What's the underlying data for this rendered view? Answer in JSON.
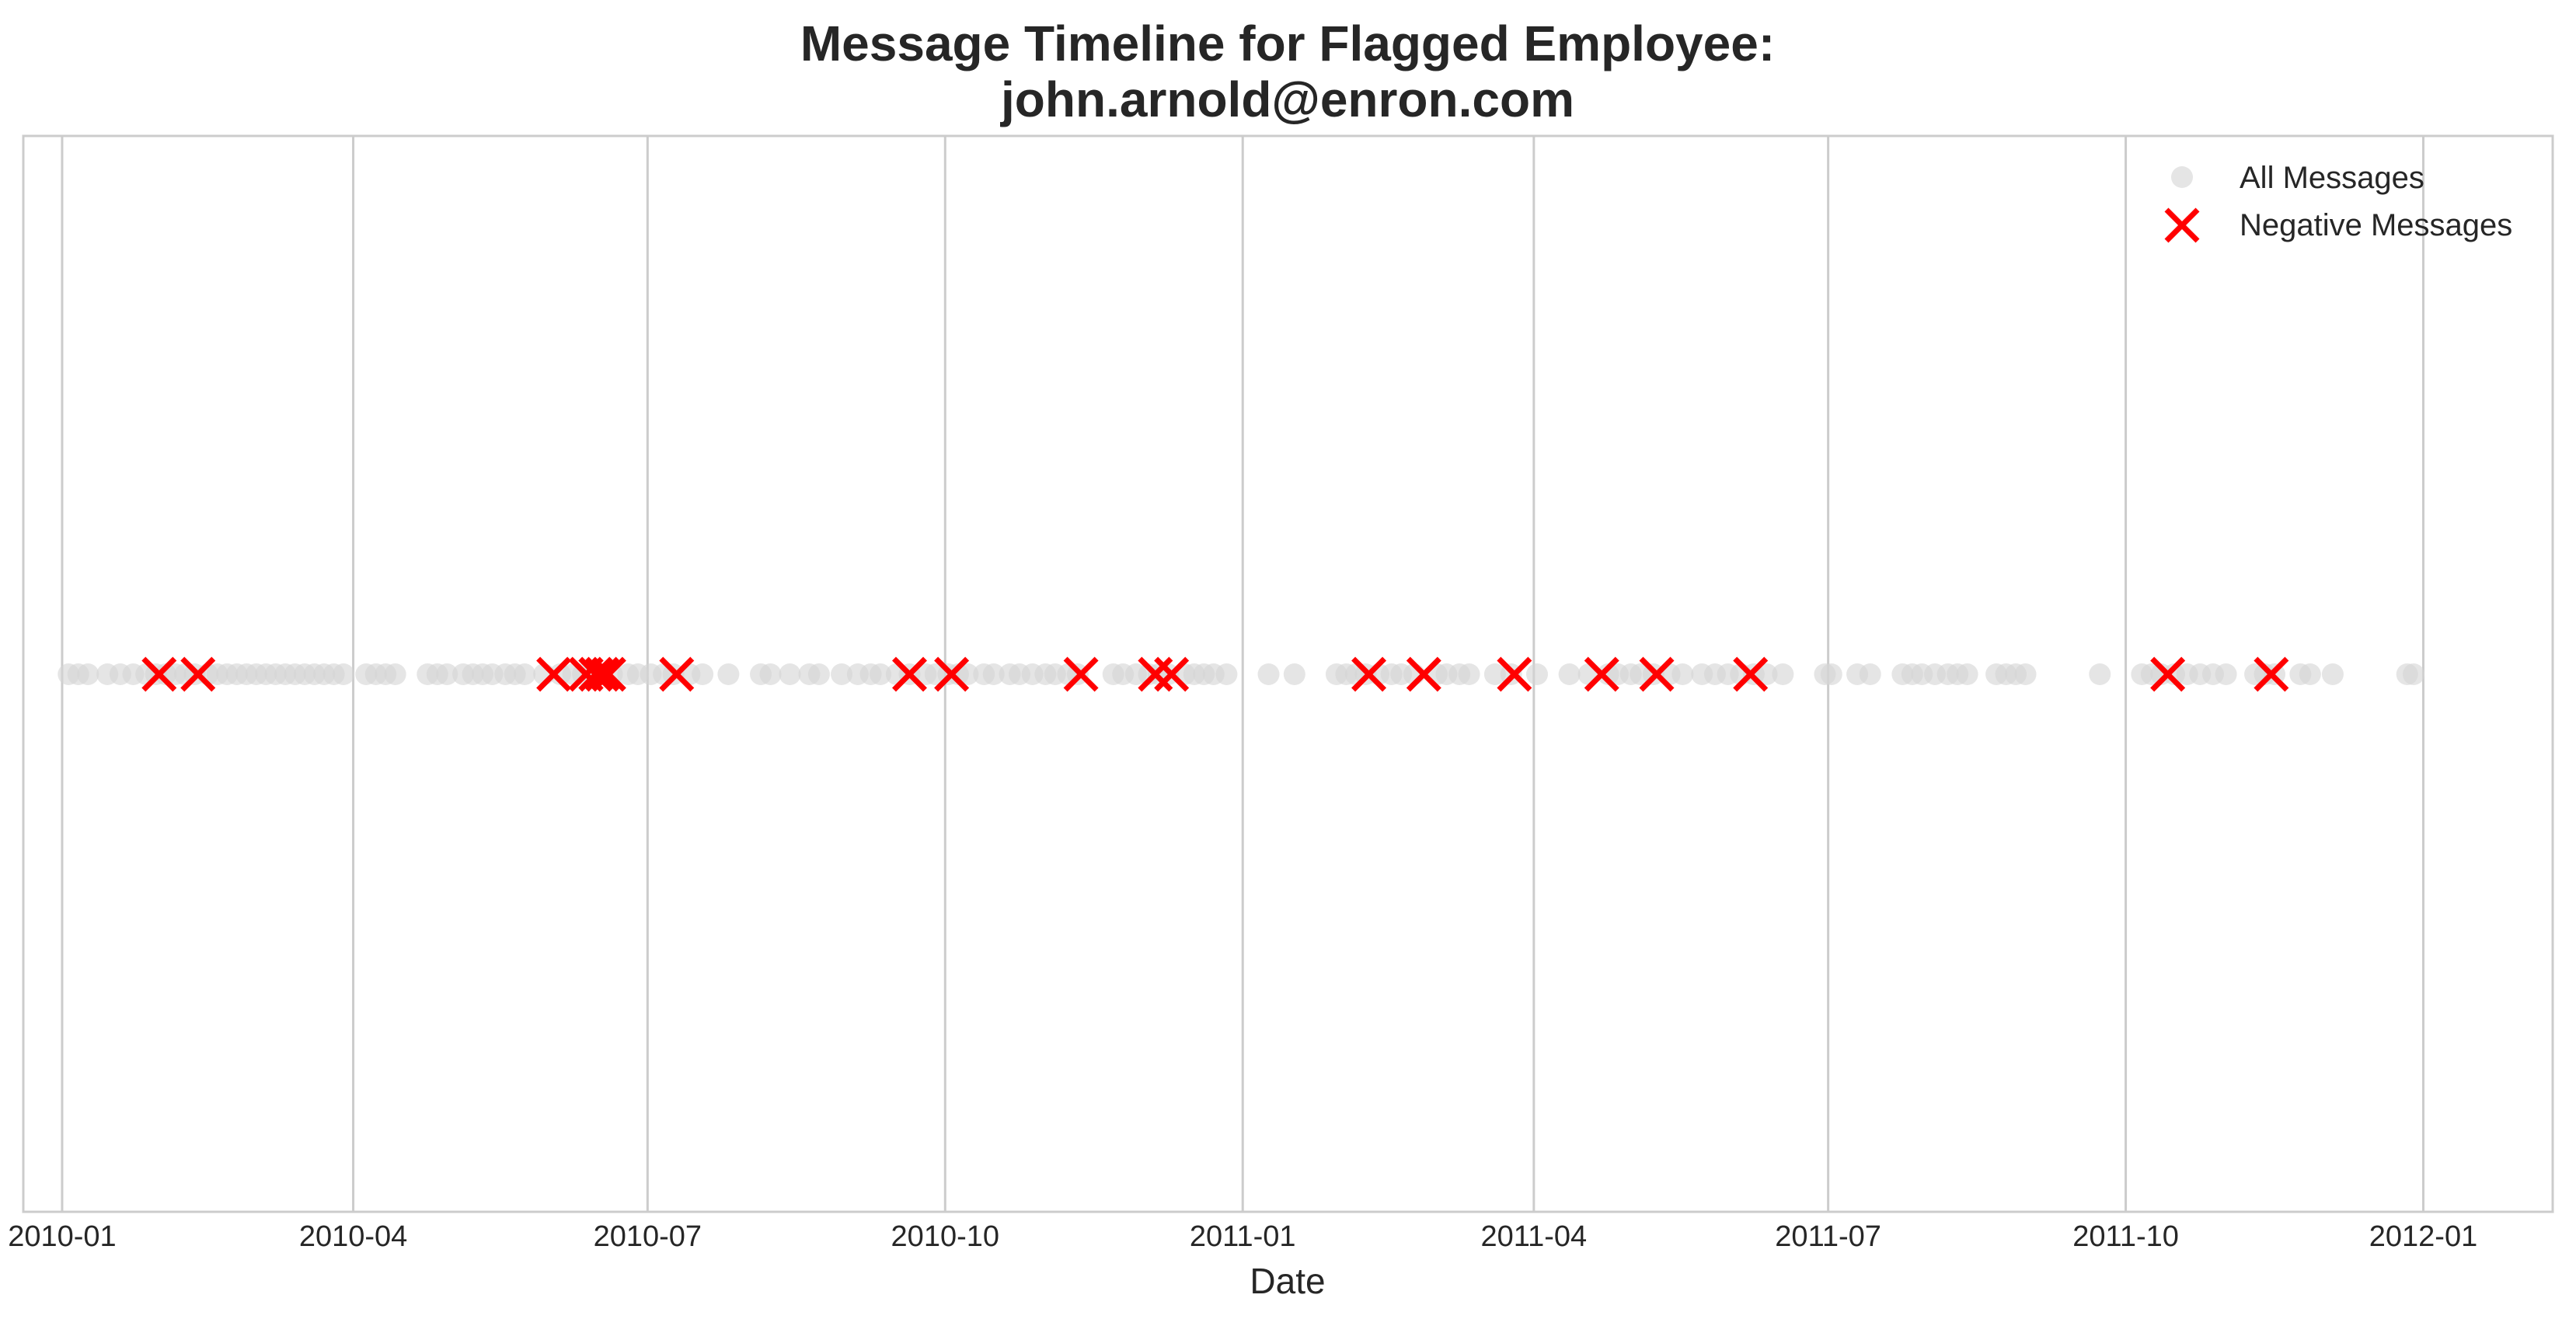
{
  "chart_data": {
    "type": "scatter",
    "title_line1": "Message Timeline for Flagged Employee:",
    "title_line2": "john.arnold@enron.com",
    "xlabel": "Date",
    "ylabel": "",
    "xlim": [
      "2009-12-20",
      "2012-02-10"
    ],
    "grid": true,
    "grid_axis": "x",
    "x_ticks": [
      "2010-01",
      "2010-04",
      "2010-07",
      "2010-10",
      "2011-01",
      "2011-04",
      "2011-07",
      "2011-10",
      "2012-01"
    ],
    "legend_position": "top-right",
    "series": [
      {
        "name": "All Messages",
        "marker": "circle",
        "color": "#d3d3d3",
        "x": [
          "2010-01-03",
          "2010-01-06",
          "2010-01-09",
          "2010-01-15",
          "2010-01-19",
          "2010-01-23",
          "2010-01-27",
          "2010-01-30",
          "2010-02-02",
          "2010-02-05",
          "2010-02-08",
          "2010-02-11",
          "2010-02-15",
          "2010-02-18",
          "2010-02-21",
          "2010-02-24",
          "2010-02-27",
          "2010-03-02",
          "2010-03-05",
          "2010-03-08",
          "2010-03-11",
          "2010-03-14",
          "2010-03-17",
          "2010-03-20",
          "2010-03-23",
          "2010-03-26",
          "2010-03-29",
          "2010-04-05",
          "2010-04-08",
          "2010-04-11",
          "2010-04-14",
          "2010-04-24",
          "2010-04-27",
          "2010-04-30",
          "2010-05-05",
          "2010-05-08",
          "2010-05-11",
          "2010-05-14",
          "2010-05-18",
          "2010-05-21",
          "2010-05-24",
          "2010-05-30",
          "2010-06-04",
          "2010-06-08",
          "2010-06-11",
          "2010-06-14",
          "2010-06-17",
          "2010-06-20",
          "2010-06-25",
          "2010-06-28",
          "2010-07-02",
          "2010-07-06",
          "2010-07-09",
          "2010-07-14",
          "2010-07-18",
          "2010-07-26",
          "2010-08-05",
          "2010-08-08",
          "2010-08-14",
          "2010-08-20",
          "2010-08-23",
          "2010-08-30",
          "2010-09-04",
          "2010-09-08",
          "2010-09-11",
          "2010-09-16",
          "2010-09-20",
          "2010-09-25",
          "2010-09-28",
          "2010-10-02",
          "2010-10-05",
          "2010-10-08",
          "2010-10-13",
          "2010-10-16",
          "2010-10-21",
          "2010-10-24",
          "2010-10-28",
          "2010-11-01",
          "2010-11-04",
          "2010-11-08",
          "2010-11-11",
          "2010-11-22",
          "2010-11-25",
          "2010-11-29",
          "2010-12-03",
          "2010-12-06",
          "2010-12-09",
          "2010-12-14",
          "2010-12-17",
          "2010-12-20",
          "2010-12-23",
          "2010-12-27",
          "2011-01-09",
          "2011-01-17",
          "2011-01-30",
          "2011-02-02",
          "2011-02-05",
          "2011-02-08",
          "2011-02-12",
          "2011-02-16",
          "2011-02-19",
          "2011-02-23",
          "2011-03-02",
          "2011-03-05",
          "2011-03-09",
          "2011-03-12",
          "2011-03-20",
          "2011-03-25",
          "2011-04-02",
          "2011-04-12",
          "2011-04-18",
          "2011-04-24",
          "2011-04-27",
          "2011-05-01",
          "2011-05-04",
          "2011-05-08",
          "2011-05-13",
          "2011-05-17",
          "2011-05-23",
          "2011-05-27",
          "2011-05-31",
          "2011-06-04",
          "2011-06-08",
          "2011-06-12",
          "2011-06-17",
          "2011-06-30",
          "2011-07-02",
          "2011-07-10",
          "2011-07-14",
          "2011-07-24",
          "2011-07-27",
          "2011-07-30",
          "2011-08-03",
          "2011-08-07",
          "2011-08-10",
          "2011-08-13",
          "2011-08-22",
          "2011-08-25",
          "2011-08-28",
          "2011-08-31",
          "2011-09-23",
          "2011-10-06",
          "2011-10-09",
          "2011-10-12",
          "2011-10-16",
          "2011-10-20",
          "2011-10-24",
          "2011-10-28",
          "2011-11-01",
          "2011-11-10",
          "2011-11-13",
          "2011-11-16",
          "2011-11-24",
          "2011-11-27",
          "2011-12-04",
          "2011-12-27",
          "2011-12-29"
        ]
      },
      {
        "name": "Negative Messages",
        "marker": "x",
        "color": "#ff0000",
        "x": [
          "2010-01-31",
          "2010-02-12",
          "2010-06-02",
          "2010-06-12",
          "2010-06-15",
          "2010-06-17",
          "2010-06-19",
          "2010-07-10",
          "2010-09-20",
          "2010-10-03",
          "2010-11-12",
          "2010-12-05",
          "2010-12-10",
          "2011-02-09",
          "2011-02-26",
          "2011-03-26",
          "2011-04-22",
          "2011-05-09",
          "2011-06-07",
          "2011-10-14",
          "2011-11-15"
        ]
      }
    ]
  }
}
